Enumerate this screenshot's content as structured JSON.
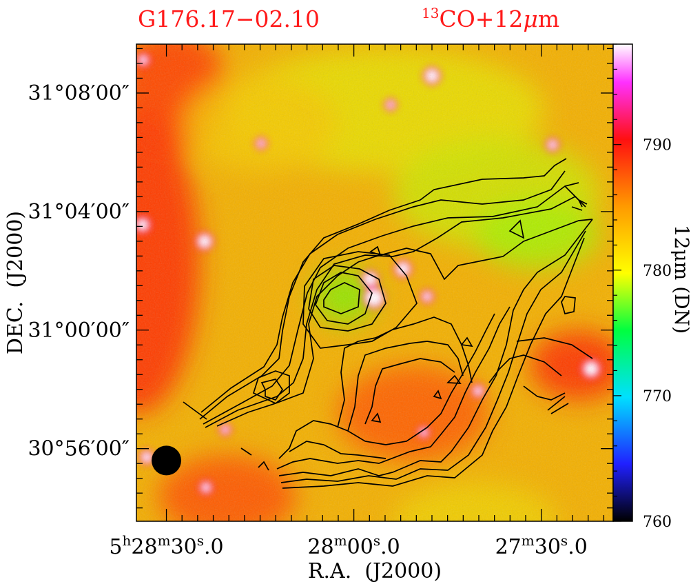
{
  "chart_data": {
    "type": "heatmap",
    "title_left": "G176.17−02.10",
    "title_right_prefix": "13",
    "title_right_main": "CO+12",
    "title_right_mu": "μ",
    "title_right_unit": "m",
    "xlabel": "R.A.  (J2000)",
    "ylabel": "DEC.  (J2000)",
    "colorbar_label": "12μm (DN)",
    "x_ticks": [
      {
        "label_h": "5",
        "h": "h",
        "label_m": "28",
        "m": "m",
        "label_s": "30",
        "s": "s",
        "label_frac": ".0",
        "ra_sec_offset": 30
      },
      {
        "label_h": "",
        "h": "",
        "label_m": "28",
        "m": "m",
        "label_s": "00",
        "s": "s",
        "label_frac": ".0",
        "ra_sec_offset": 0
      },
      {
        "label_h": "",
        "h": "",
        "label_m": "27",
        "m": "m",
        "label_s": "30",
        "s": "s",
        "label_frac": ".0",
        "ra_sec_offset": -30
      }
    ],
    "y_ticks": [
      {
        "label": "31°08′00″",
        "dec_arcmin": 8
      },
      {
        "label": "31°04′00″",
        "dec_arcmin": 4
      },
      {
        "label": "31°00′00″",
        "dec_arcmin": 0
      },
      {
        "label": "30°56′00″",
        "dec_arcmin": -4
      }
    ],
    "x_range_ra_sec_offset": [
      34.8,
      -41.5
    ],
    "y_range_dec_arcmin": [
      -6.45,
      9.65
    ],
    "colorbar_ticks": [
      "760",
      "770",
      "780",
      "790"
    ],
    "colorbar_range": [
      760,
      798
    ],
    "colormap": [
      "#000000",
      "#2020ff",
      "#00e0ff",
      "#00ff40",
      "#ffff00",
      "#ff9a00",
      "#ff1010",
      "#ff30ff",
      "#ffffff"
    ],
    "background_field_color": "#f4b000",
    "beam": {
      "ra_sec_offset": 30,
      "dec_arcmin": -4.4,
      "diameter_arcmin": 1.0,
      "color": "#000000"
    },
    "contour_color": "#000000",
    "title_color": "#ff1a1a"
  }
}
